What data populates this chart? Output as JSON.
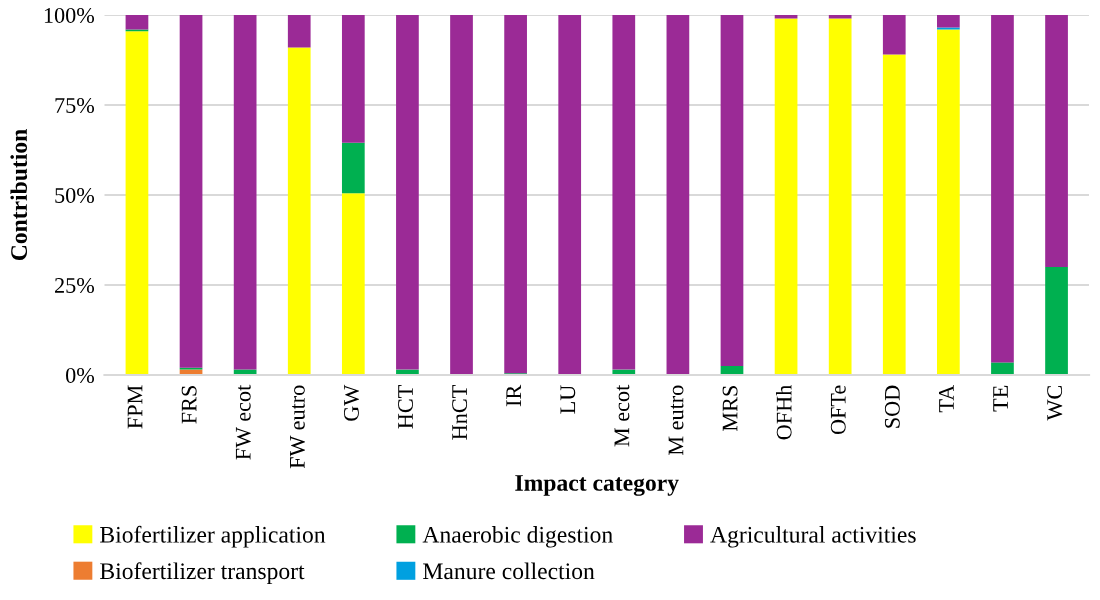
{
  "chart_data": {
    "type": "bar",
    "stacked": true,
    "xlabel": "Impact category",
    "ylabel": "Contribution",
    "categories": [
      "FPM",
      "FRS",
      "FW ecot",
      "FW eutro",
      "GW",
      "HCT",
      "HnCT",
      "IR",
      "LU",
      "M ecot",
      "M eutro",
      "MRS",
      "OFHh",
      "OFTe",
      "SOD",
      "TA",
      "TE",
      "WC"
    ],
    "series": [
      {
        "name": "Biofertilizer application",
        "color": "#ffff00",
        "values": [
          95.5,
          0,
          0,
          91,
          50.5,
          0,
          0,
          0,
          0,
          0,
          0,
          0,
          99,
          99,
          89,
          96,
          0,
          0
        ]
      },
      {
        "name": "Biofertilizer transport",
        "color": "#ed7d31",
        "values": [
          0,
          1.5,
          0,
          0,
          0,
          0,
          0,
          0,
          0,
          0,
          0,
          0,
          0,
          0,
          0,
          0,
          0,
          0
        ]
      },
      {
        "name": "Anaerobic digestion",
        "color": "#00b050",
        "values": [
          0.5,
          0.5,
          1.5,
          0,
          14,
          1.5,
          0,
          0.5,
          0,
          1.5,
          0,
          2.5,
          0,
          0,
          0,
          0,
          3.5,
          30
        ]
      },
      {
        "name": "Manure collection",
        "color": "#00a0e0",
        "values": [
          0,
          0,
          0,
          0,
          0,
          0,
          0,
          0,
          0,
          0,
          0,
          0,
          0,
          0,
          0,
          0.5,
          0,
          0
        ]
      },
      {
        "name": "Agricultural activities",
        "color": "#9b2a96",
        "values": [
          4,
          98,
          98.5,
          9,
          35.5,
          98.5,
          100,
          99.5,
          100,
          98.5,
          100,
          97.5,
          1,
          1,
          11,
          3.5,
          96.5,
          70
        ]
      }
    ],
    "ylim": [
      0,
      100
    ],
    "yticks": [
      {
        "value": 0,
        "label": "0%"
      },
      {
        "value": 25,
        "label": "25%"
      },
      {
        "value": 50,
        "label": "50%"
      },
      {
        "value": 75,
        "label": "75%"
      },
      {
        "value": 100,
        "label": "100%"
      }
    ],
    "grid": "y",
    "legend": "bottom"
  }
}
